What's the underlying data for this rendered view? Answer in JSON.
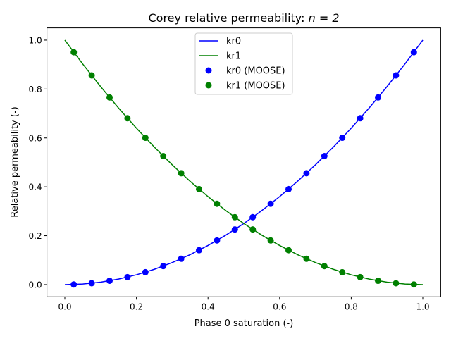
{
  "chart_data": {
    "type": "line",
    "title_prefix": "Corey relative permeability: ",
    "title_math": "n = 2",
    "xlabel": "Phase 0 saturation (-)",
    "ylabel": "Relative permeability (-)",
    "xlim": [
      -0.05,
      1.05
    ],
    "ylim": [
      -0.05,
      1.05
    ],
    "xticks": [
      0.0,
      0.2,
      0.4,
      0.6,
      0.8,
      1.0
    ],
    "xtick_labels": [
      "0.0",
      "0.2",
      "0.4",
      "0.6",
      "0.8",
      "1.0"
    ],
    "yticks": [
      0.0,
      0.2,
      0.4,
      0.6,
      0.8,
      1.0
    ],
    "ytick_labels": [
      "0.0",
      "0.2",
      "0.4",
      "0.6",
      "0.8",
      "1.0"
    ],
    "grid": false,
    "legend_placement": "upper-center",
    "line_x": [
      0,
      0.05,
      0.1,
      0.15,
      0.2,
      0.25,
      0.3,
      0.35,
      0.4,
      0.45,
      0.5,
      0.55,
      0.6,
      0.65,
      0.7,
      0.75,
      0.8,
      0.85,
      0.9,
      0.95,
      1.0
    ],
    "point_x": [
      0.025,
      0.075,
      0.125,
      0.175,
      0.225,
      0.275,
      0.325,
      0.375,
      0.425,
      0.475,
      0.525,
      0.575,
      0.625,
      0.675,
      0.725,
      0.775,
      0.825,
      0.875,
      0.925,
      0.975
    ],
    "series": [
      {
        "name": "kr0",
        "kind": "line",
        "color": "#0000ff",
        "values": [
          0,
          0.0025,
          0.01,
          0.0225,
          0.04,
          0.0625,
          0.09,
          0.1225,
          0.16,
          0.2025,
          0.25,
          0.3025,
          0.36,
          0.4225,
          0.49,
          0.5625,
          0.64,
          0.7225,
          0.81,
          0.9025,
          1.0
        ]
      },
      {
        "name": "kr1",
        "kind": "line",
        "color": "#008000",
        "values": [
          1.0,
          0.9025,
          0.81,
          0.7225,
          0.64,
          0.5625,
          0.49,
          0.4225,
          0.36,
          0.3025,
          0.25,
          0.2025,
          0.16,
          0.1225,
          0.09,
          0.0625,
          0.04,
          0.0225,
          0.01,
          0.0025,
          0
        ]
      },
      {
        "name": "kr0 (MOOSE)",
        "kind": "scatter",
        "color": "#0000ff",
        "values": [
          0.000625,
          0.005625,
          0.015625,
          0.030625,
          0.050625,
          0.075625,
          0.105625,
          0.140625,
          0.180625,
          0.225625,
          0.275625,
          0.330625,
          0.390625,
          0.455625,
          0.525625,
          0.600625,
          0.680625,
          0.765625,
          0.855625,
          0.950625
        ]
      },
      {
        "name": "kr1 (MOOSE)",
        "kind": "scatter",
        "color": "#008000",
        "values": [
          0.950625,
          0.855625,
          0.765625,
          0.680625,
          0.600625,
          0.525625,
          0.455625,
          0.390625,
          0.330625,
          0.275625,
          0.225625,
          0.180625,
          0.140625,
          0.105625,
          0.075625,
          0.050625,
          0.030625,
          0.015625,
          0.005625,
          0.000625
        ]
      }
    ]
  }
}
